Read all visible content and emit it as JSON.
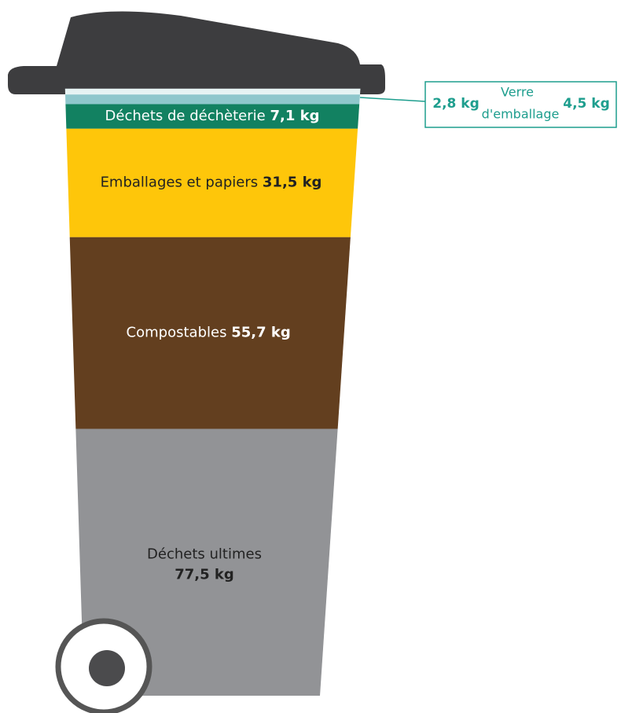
{
  "chart_data": {
    "type": "bin",
    "categories": [
      "Déchets ultimes",
      "Compostables",
      "Emballages et papiers",
      "Déchets de déchèterie"
    ],
    "values": [
      77.5,
      55.7,
      31.5,
      7.1
    ],
    "value_labels": [
      "77,5 kg",
      "55,7 kg",
      "31,5 kg",
      "7,1 kg"
    ],
    "colors": [
      "#929396",
      "#633f1f",
      "#fec60a",
      "#128161"
    ],
    "glass": {
      "name_lines": [
        "Verre",
        "d'emballage"
      ],
      "values": [
        2.8,
        4.5
      ],
      "value_labels": [
        "2,8 kg",
        "4,5 kg"
      ],
      "color": "#1e9e8e"
    }
  }
}
